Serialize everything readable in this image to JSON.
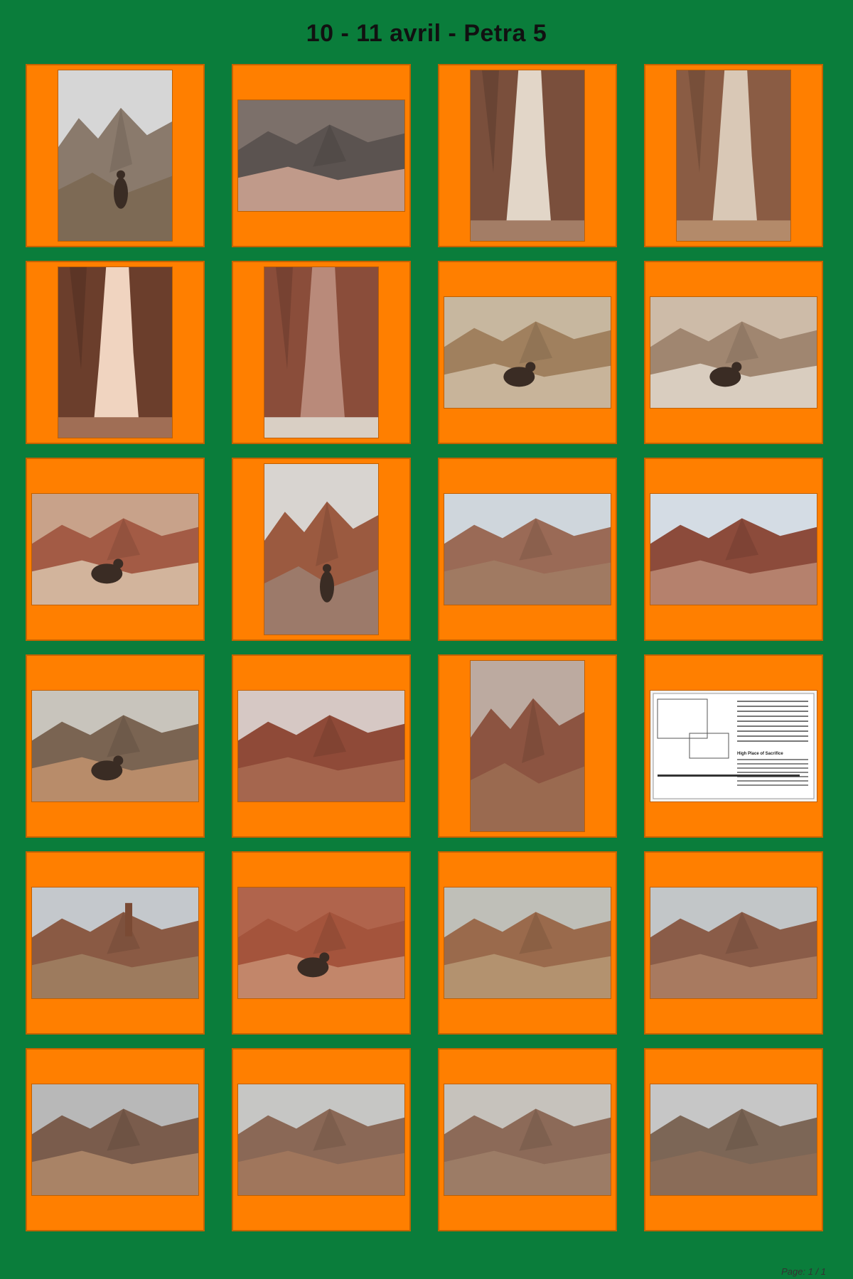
{
  "header": {
    "title": "10 - 11 avril - Petra 5"
  },
  "footer": {
    "page_label": "Page: 1 / 1"
  },
  "photos": [
    {
      "orientation": "portrait",
      "sky": "#d6d6d6",
      "rock": "#8a7a6c",
      "ground": "#7d6a55",
      "depicts": "hillside"
    },
    {
      "orientation": "landscape",
      "sky": "#7c706a",
      "rock": "#5b5350",
      "ground": "#c09a8a",
      "depicts": "mountains"
    },
    {
      "orientation": "portrait",
      "sky": "#e2d6c8",
      "rock": "#7a4f3c",
      "ground": "#a37d66",
      "depicts": "siq"
    },
    {
      "orientation": "portrait",
      "sky": "#d9c8b6",
      "rock": "#8a5c44",
      "ground": "#b38a6a",
      "depicts": "siq"
    },
    {
      "orientation": "portrait",
      "sky": "#f0d4c0",
      "rock": "#6b3e2c",
      "ground": "#a06e55",
      "depicts": "siq"
    },
    {
      "orientation": "portrait",
      "sky": "#b98a7a",
      "rock": "#8a4d3a",
      "ground": "#d9cfc4",
      "depicts": "siq"
    },
    {
      "orientation": "landscape",
      "sky": "#c7b79f",
      "rock": "#a0805e",
      "ground": "#c8b49a",
      "depicts": "camels"
    },
    {
      "orientation": "landscape",
      "sky": "#cdbba8",
      "rock": "#a08670",
      "ground": "#d9cdbf",
      "depicts": "camel"
    },
    {
      "orientation": "landscape",
      "sky": "#c8a28a",
      "rock": "#a35b45",
      "ground": "#d2b49c",
      "depicts": "donkey"
    },
    {
      "orientation": "portrait",
      "sky": "#d8d4d0",
      "rock": "#9b5a40",
      "ground": "#9c7a6a",
      "depicts": "steps"
    },
    {
      "orientation": "landscape",
      "sky": "#cfd6dc",
      "rock": "#9a6a56",
      "ground": "#a07a62",
      "depicts": "valley"
    },
    {
      "orientation": "landscape",
      "sky": "#d4dce4",
      "rock": "#8c4b3b",
      "ground": "#b5816d",
      "depicts": "valley"
    },
    {
      "orientation": "landscape",
      "sky": "#c8c4bc",
      "rock": "#7a6452",
      "ground": "#b88c6a",
      "depicts": "group"
    },
    {
      "orientation": "landscape",
      "sky": "#d6c8c4",
      "rock": "#8f4a38",
      "ground": "#a5664e",
      "depicts": "canyon"
    },
    {
      "orientation": "portrait",
      "sky": "#bcaaa0",
      "rock": "#8c5441",
      "ground": "#9a6a50",
      "depicts": "canyon"
    },
    {
      "orientation": "landscape",
      "sky": "#f2f2f2",
      "rock": "#dcdcdc",
      "ground": "#eaeaea",
      "depicts": "sign",
      "sign_heading": "High Place of Sacrifice"
    },
    {
      "orientation": "landscape",
      "sky": "#c4c8cc",
      "rock": "#8a5a44",
      "ground": "#9d7b5e",
      "depicts": "obelisk"
    },
    {
      "orientation": "landscape",
      "sky": "#b0644c",
      "rock": "#a4543c",
      "ground": "#c2866a",
      "depicts": "donkey-rider"
    },
    {
      "orientation": "landscape",
      "sky": "#bfbfb8",
      "rock": "#9a6a4c",
      "ground": "#b3926f",
      "depicts": "ruins"
    },
    {
      "orientation": "landscape",
      "sky": "#c2c6c8",
      "rock": "#8a5c48",
      "ground": "#a87a60",
      "depicts": "plateau"
    },
    {
      "orientation": "landscape",
      "sky": "#b8b8b8",
      "rock": "#7a5c4c",
      "ground": "#a98366",
      "depicts": "plateau"
    },
    {
      "orientation": "landscape",
      "sky": "#c6c6c4",
      "rock": "#8a6856",
      "ground": "#a0765c",
      "depicts": "plateau"
    },
    {
      "orientation": "landscape",
      "sky": "#c6c2bc",
      "rock": "#8c6a58",
      "ground": "#9c7c66",
      "depicts": "plateau"
    },
    {
      "orientation": "landscape",
      "sky": "#c6c6c6",
      "rock": "#7c6656",
      "ground": "#8a6c58",
      "depicts": "plateau"
    }
  ]
}
